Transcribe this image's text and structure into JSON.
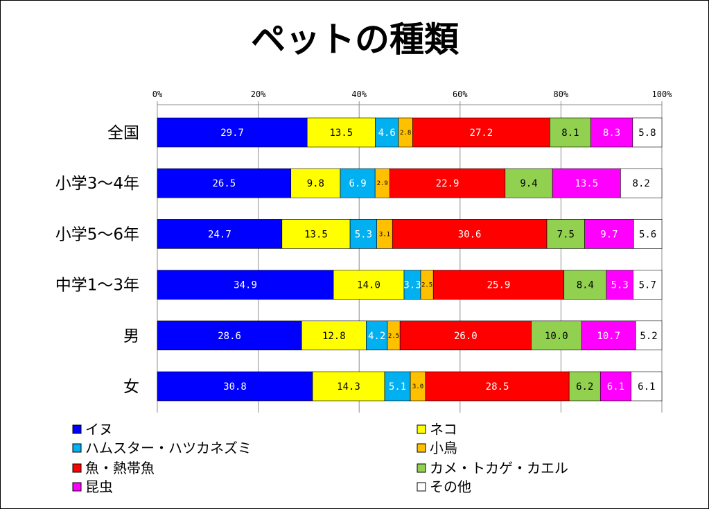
{
  "chart_data": {
    "type": "bar",
    "orientation": "horizontal",
    "stacked": true,
    "percent_stacked": true,
    "title": "ペットの種類",
    "xlim": [
      0,
      100
    ],
    "x_ticks": [
      "0%",
      "20%",
      "40%",
      "60%",
      "80%",
      "100%"
    ],
    "grid": true,
    "legend_position": "bottom",
    "categories": [
      "全国",
      "小学3～4年",
      "小学5～6年",
      "中学1～3年",
      "男",
      "女"
    ],
    "series": [
      {
        "name": "イヌ",
        "color": "#0000ff",
        "label_color": "#ffffff",
        "values": [
          29.7,
          26.5,
          24.7,
          34.9,
          28.6,
          30.8
        ],
        "labels": [
          "29.7",
          "26.5",
          "24.7",
          "34.9",
          "28.6",
          "30.8"
        ]
      },
      {
        "name": "ネコ",
        "color": "#ffff00",
        "label_color": "#000000",
        "values": [
          13.5,
          9.8,
          13.5,
          14.0,
          12.8,
          14.3
        ],
        "labels": [
          "13.5",
          "9.8",
          "13.5",
          "14.0",
          "12.8",
          "14.3"
        ]
      },
      {
        "name": "ハムスター・ハツカネズミ",
        "color": "#00b0f0",
        "label_color": "#ffffff",
        "values": [
          4.6,
          6.9,
          5.3,
          3.3,
          4.2,
          5.1
        ],
        "labels": [
          "4.6",
          "6.9",
          "5.3",
          "3.3",
          "4.2",
          "5.1"
        ]
      },
      {
        "name": "小鳥",
        "color": "#ffc000",
        "label_color": "#000000",
        "values": [
          2.8,
          2.9,
          3.1,
          2.5,
          2.5,
          3.0
        ],
        "labels": [
          "2.8",
          "2.9",
          "3.1",
          "2.5",
          "2.5",
          "3.0"
        ]
      },
      {
        "name": "魚・熱帯魚",
        "color": "#ff0000",
        "label_color": "#ffffff",
        "values": [
          27.2,
          22.9,
          30.6,
          25.9,
          26.0,
          28.5
        ],
        "labels": [
          "27.2",
          "22.9",
          "30.6",
          "25.9",
          "26.0",
          "28.5"
        ]
      },
      {
        "name": "カメ・トカゲ・カエル",
        "color": "#92d050",
        "label_color": "#000000",
        "values": [
          8.1,
          9.4,
          7.5,
          8.4,
          10.0,
          6.2
        ],
        "labels": [
          "8.1",
          "9.4",
          "7.5",
          "8.4",
          "10.0",
          "6.2"
        ]
      },
      {
        "name": "昆虫",
        "color": "#ff00ff",
        "label_color": "#ffffff",
        "values": [
          8.3,
          13.5,
          9.7,
          5.3,
          10.7,
          6.1
        ],
        "labels": [
          "8.3",
          "13.5",
          "9.7",
          "5.3",
          "10.7",
          "6.1"
        ]
      },
      {
        "name": "その他",
        "color": "#ffffff",
        "label_color": "#000000",
        "values": [
          5.8,
          8.2,
          5.6,
          5.7,
          5.2,
          6.1
        ],
        "labels": [
          "5.8",
          "8.2",
          "5.6",
          "5.7",
          "5.2",
          "6.1"
        ]
      }
    ]
  }
}
